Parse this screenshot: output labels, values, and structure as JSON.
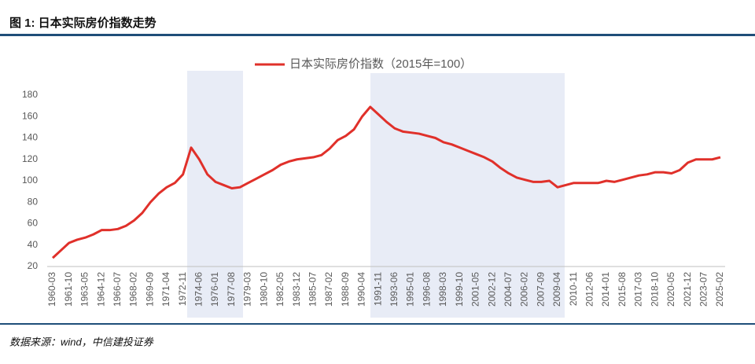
{
  "chart_data": {
    "type": "line",
    "title": "图 1: 日本实际房价指数走势",
    "source": "数据来源：wind，中信建投证券",
    "categories": [
      "1960-03",
      null,
      "1961-10",
      null,
      "1963-05",
      null,
      "1964-12",
      null,
      "1966-07",
      null,
      "1968-02",
      null,
      "1969-09",
      null,
      "1971-04",
      null,
      "1972-11",
      null,
      "1974-06",
      null,
      "1976-01",
      null,
      "1977-08",
      null,
      "1979-03",
      null,
      "1980-10",
      null,
      "1982-05",
      null,
      "1983-12",
      null,
      "1985-07",
      null,
      "1987-02",
      null,
      "1988-09",
      null,
      "1990-04",
      null,
      "1991-11",
      null,
      "1993-06",
      null,
      "1995-01",
      null,
      "1996-08",
      null,
      "1998-03",
      null,
      "1999-10",
      null,
      "2001-05",
      null,
      "2002-12",
      null,
      "2004-07",
      null,
      "2006-02",
      null,
      "2007-09",
      null,
      "2009-04",
      null,
      "2010-11",
      null,
      "2012-06",
      null,
      "2014-01",
      null,
      "2015-08",
      null,
      "2017-03",
      null,
      "2018-10",
      null,
      "2020-05",
      null,
      "2021-12",
      null,
      "2023-07",
      null,
      "2025-02"
    ],
    "series": [
      {
        "name": "日本实际房价指数（2015年=100）",
        "color": "#e0302a",
        "values": [
          28,
          35,
          42,
          45,
          47,
          50,
          54,
          54,
          55,
          58,
          63,
          70,
          80,
          88,
          94,
          98,
          106,
          131,
          120,
          106,
          99,
          96,
          93,
          94,
          98,
          102,
          106,
          110,
          115,
          118,
          120,
          121,
          122,
          124,
          130,
          138,
          142,
          148,
          160,
          169,
          162,
          155,
          149,
          146,
          145,
          144,
          142,
          140,
          136,
          134,
          131,
          128,
          125,
          122,
          118,
          112,
          107,
          103,
          101,
          99,
          99,
          100,
          94,
          96,
          98,
          98,
          98,
          98,
          100,
          99,
          101,
          103,
          105,
          106,
          108,
          108,
          107,
          110,
          117,
          120,
          120,
          120,
          122
        ]
      }
    ],
    "ylim": [
      20,
      180
    ],
    "yticks": [
      20,
      40,
      60,
      80,
      100,
      120,
      140,
      160,
      180
    ],
    "grid": false
  }
}
